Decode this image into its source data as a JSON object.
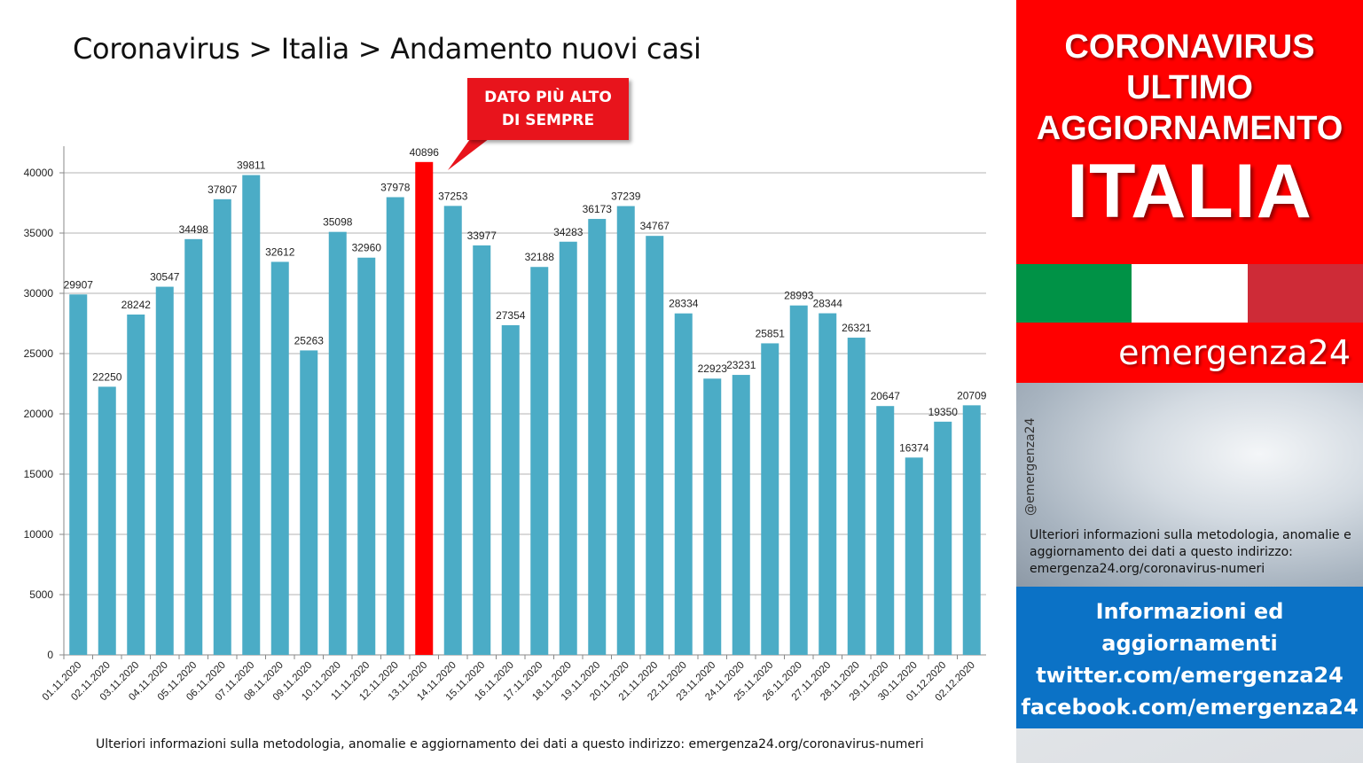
{
  "title": "Coronavirus > Italia > Andamento nuovi casi",
  "callout": {
    "line1": "DATO PIÙ ALTO",
    "line2": "DI SEMPRE"
  },
  "footnote": "Ulteriori informazioni sulla metodologia, anomalie e aggiornamento dei dati a questo indirizzo: emergenza24.org/coronavirus-numeri",
  "chart_data": {
    "type": "bar",
    "title": "Coronavirus > Italia > Andamento nuovi casi",
    "xlabel": "",
    "ylabel": "",
    "ylim": [
      0,
      40000
    ],
    "yticks": [
      0,
      5000,
      10000,
      15000,
      20000,
      25000,
      30000,
      35000,
      40000
    ],
    "grid": true,
    "legend": "none",
    "categories": [
      "01.11.2020",
      "02.11.2020",
      "03.11.2020",
      "04.11.2020",
      "05.11.2020",
      "06.11.2020",
      "07.11.2020",
      "08.11.2020",
      "09.11.2020",
      "10.11.2020",
      "11.11.2020",
      "12.11.2020",
      "13.11.2020",
      "14.11.2020",
      "15.11.2020",
      "16.11.2020",
      "17.11.2020",
      "18.11.2020",
      "19.11.2020",
      "20.11.2020",
      "21.11.2020",
      "22.11.2020",
      "23.11.2020",
      "24.11.2020",
      "25.11.2020",
      "26.11.2020",
      "27.11.2020",
      "28.11.2020",
      "29.11.2020",
      "30.11.2020",
      "01.12.2020",
      "02.12.2020"
    ],
    "values": [
      29907,
      22250,
      28242,
      30547,
      34498,
      37807,
      39811,
      32612,
      25263,
      35098,
      32960,
      37978,
      40896,
      37253,
      33977,
      27354,
      32188,
      34283,
      36173,
      37239,
      34767,
      28334,
      22923,
      23231,
      25851,
      28993,
      28344,
      26321,
      20647,
      16374,
      19350,
      20709
    ],
    "highlight_index": 12,
    "bar_color": "#4bacc6",
    "highlight_color": "#ff0000"
  },
  "side": {
    "heading_lines": [
      "CORONAVIRUS",
      "ULTIMO",
      "AGGIORNAMENTO"
    ],
    "country": "ITALIA",
    "flag_colors": [
      "#009246",
      "#ffffff",
      "#ce2b37"
    ],
    "brand": "emergenza24",
    "handle": "@emergenza24",
    "info": "Ulteriori informazioni sulla metodologia, anomalie e aggiornamento dei dati a questo indirizzo: emergenza24.org/coronavirus-numeri",
    "social_lines": [
      "Informazioni ed",
      "aggiornamenti",
      "twitter.com/emergenza24",
      "facebook.com/emergenza24"
    ]
  }
}
